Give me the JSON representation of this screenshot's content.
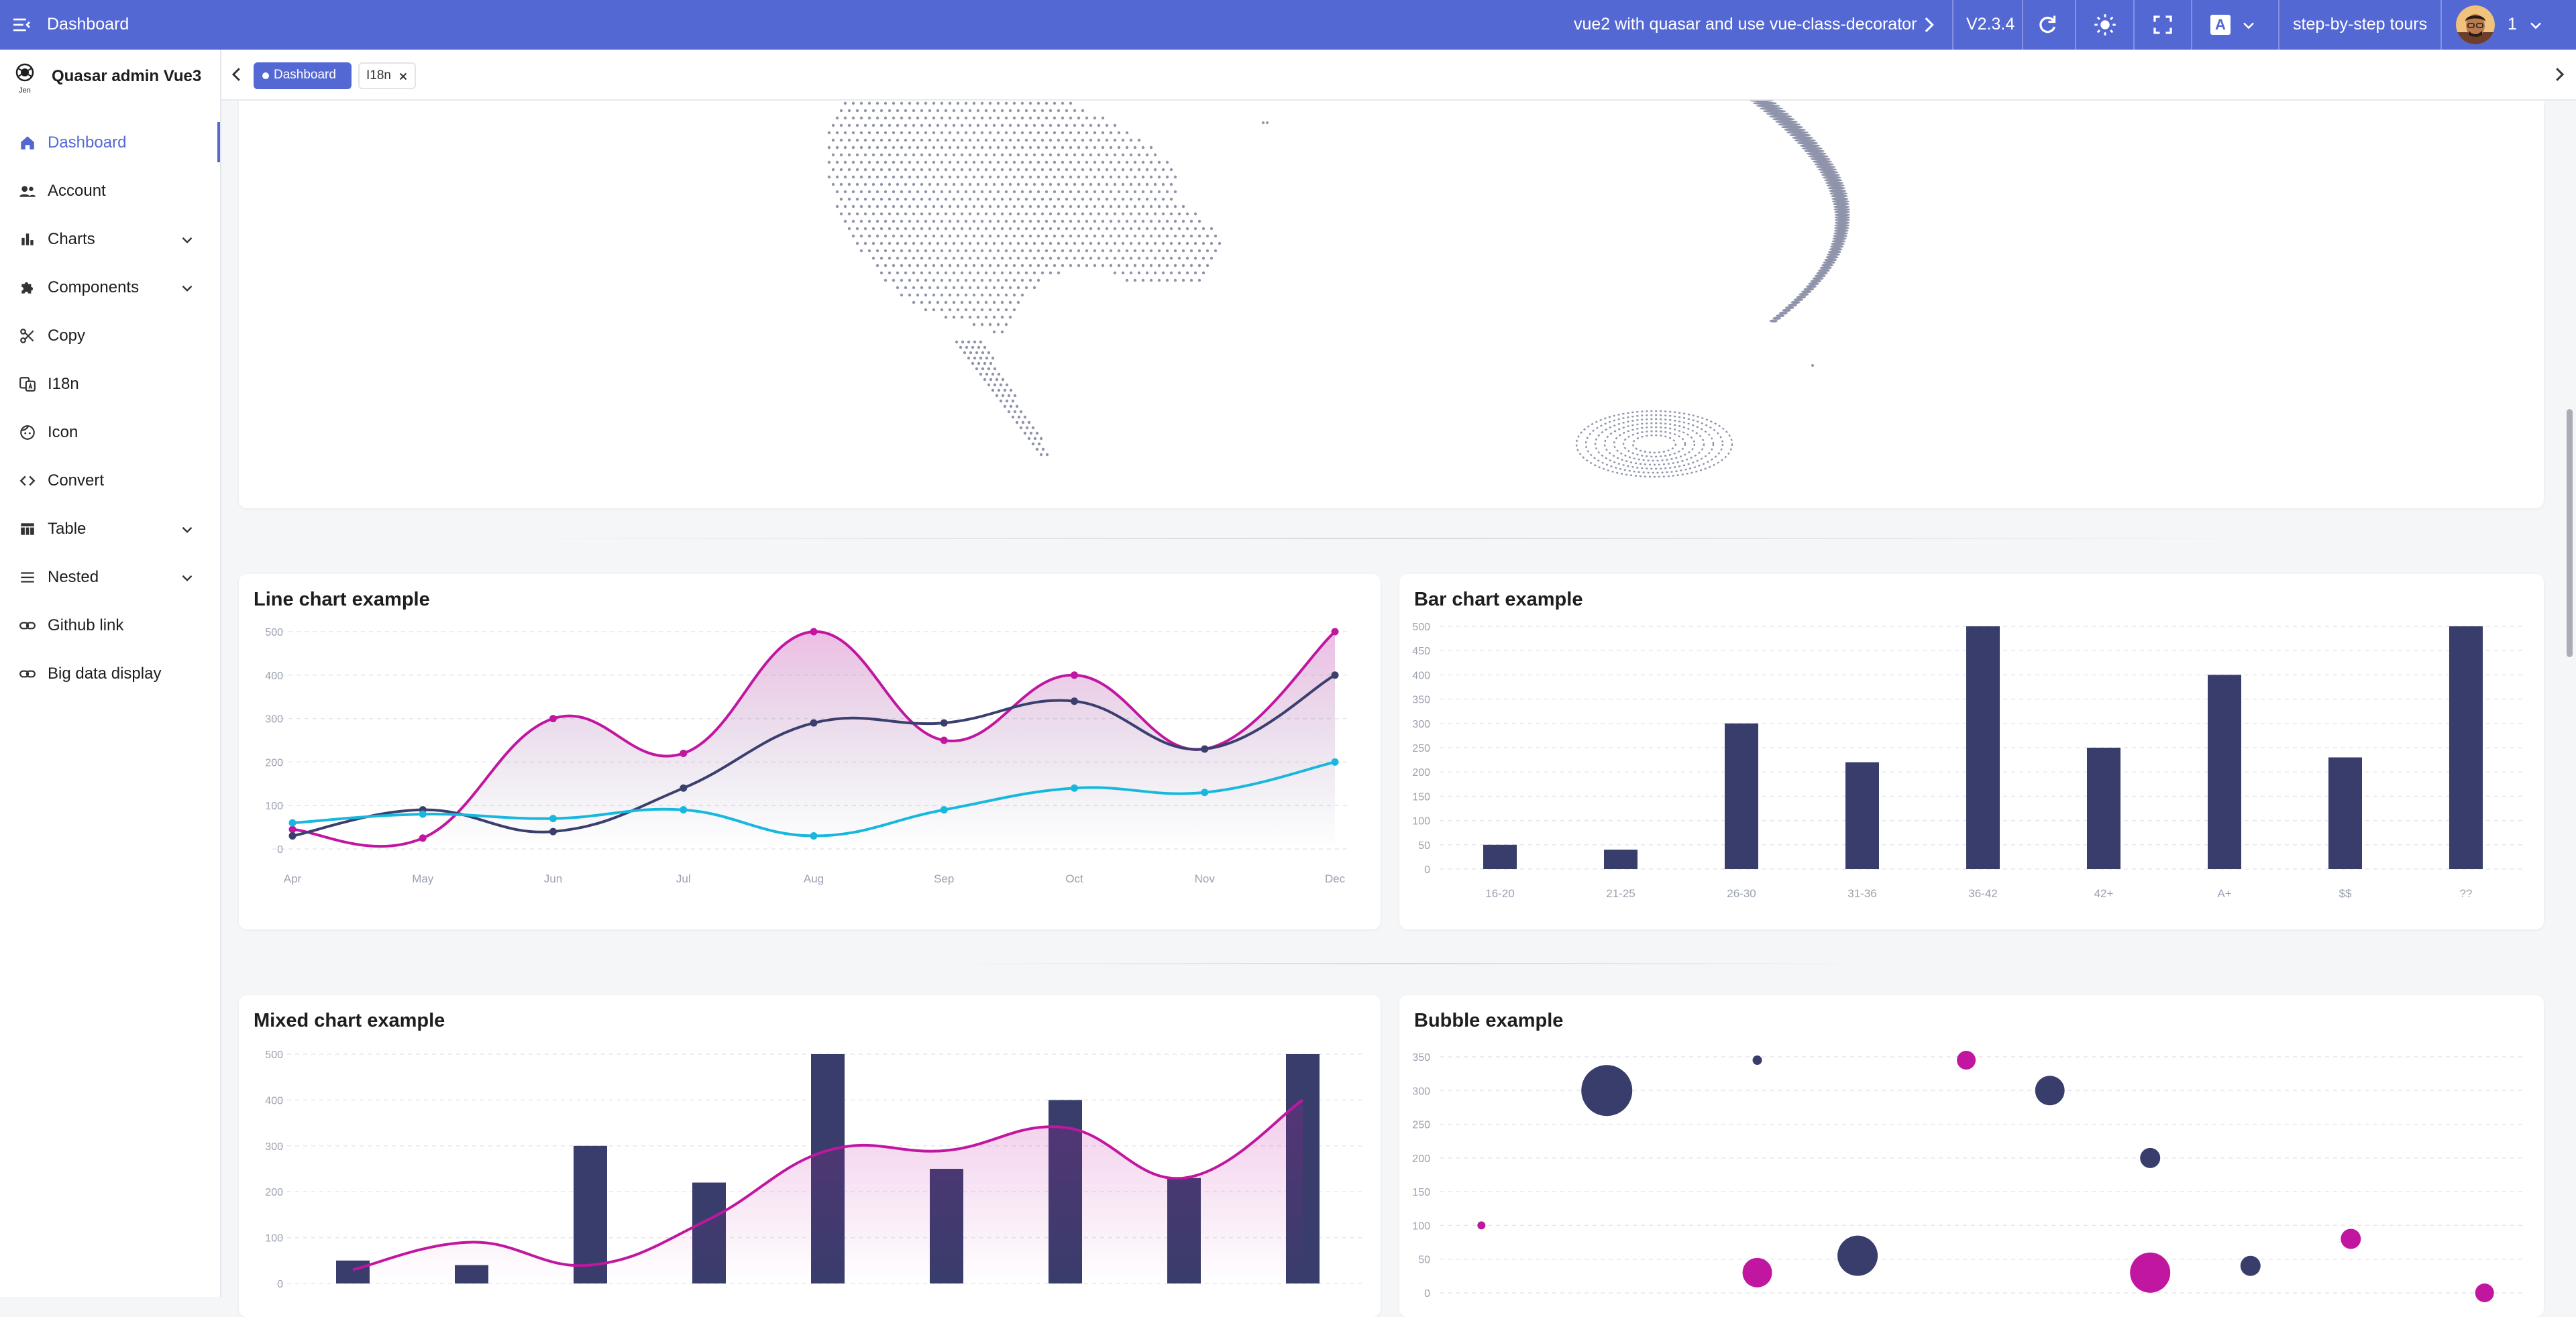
{
  "header": {
    "title": "Dashboard",
    "marquee": "vue2 with quasar and use vue-class-decorator",
    "version": "V2.3.4",
    "lang_badge": "A",
    "tours": "step-by-step tours",
    "user": "1",
    "color": "#5468d4",
    "icons": [
      "menu-fold-icon",
      "chevron-right-icon",
      "refresh-icon",
      "brightness-icon",
      "fullscreen-icon",
      "translate-icon",
      "chevron-down-icon"
    ]
  },
  "sidebar": {
    "brand": "Quasar admin Vue3",
    "logo_text": "Jen",
    "items": [
      {
        "label": "Dashboard",
        "icon": "home-icon",
        "active": true
      },
      {
        "label": "Account",
        "icon": "people-icon"
      },
      {
        "label": "Charts",
        "icon": "bar-chart-icon",
        "expandable": true
      },
      {
        "label": "Components",
        "icon": "puzzle-icon",
        "expandable": true
      },
      {
        "label": "Copy",
        "icon": "scissors-icon"
      },
      {
        "label": "I18n",
        "icon": "translate-icon"
      },
      {
        "label": "Icon",
        "icon": "face-icon"
      },
      {
        "label": "Convert",
        "icon": "code-icon"
      },
      {
        "label": "Table",
        "icon": "table-icon",
        "expandable": true
      },
      {
        "label": "Nested",
        "icon": "menu-icon",
        "expandable": true
      },
      {
        "label": "Github link",
        "icon": "link-icon"
      },
      {
        "label": "Big data display",
        "icon": "link-icon"
      }
    ]
  },
  "tabs": [
    {
      "label": "Dashboard",
      "active": true
    },
    {
      "label": "I18n",
      "closable": true
    }
  ],
  "cards": {
    "line": {
      "title": "Line chart example"
    },
    "bar": {
      "title": "Bar chart example"
    },
    "mixed": {
      "title": "Mixed chart example"
    },
    "bubble": {
      "title": "Bubble example"
    }
  },
  "chart_data": [
    {
      "type": "line",
      "title": "Line chart example",
      "categories": [
        "Apr",
        "May",
        "Jun",
        "Jul",
        "Aug",
        "Sep",
        "Oct",
        "Nov",
        "Dec"
      ],
      "ylim": [
        0,
        500
      ],
      "yticks": [
        0,
        100,
        200,
        300,
        400,
        500
      ],
      "grid": true,
      "series": [
        {
          "values": [
            45,
            25,
            300,
            220,
            500,
            250,
            400,
            230,
            500
          ],
          "color": "#c016a0",
          "area": true
        },
        {
          "values": [
            30,
            90,
            40,
            140,
            290,
            290,
            340,
            230,
            400
          ],
          "color": "#3a3f6e"
        },
        {
          "values": [
            60,
            80,
            70,
            90,
            30,
            90,
            140,
            130,
            200
          ],
          "color": "#18b8de"
        }
      ]
    },
    {
      "type": "bar",
      "title": "Bar chart example",
      "categories": [
        "16-20",
        "21-25",
        "26-30",
        "31-36",
        "36-42",
        "42+",
        "A+",
        "$$",
        "??"
      ],
      "values": [
        50,
        40,
        300,
        220,
        500,
        250,
        400,
        230,
        500
      ],
      "ylim": [
        0,
        500
      ],
      "yticks": [
        0,
        50,
        100,
        150,
        200,
        250,
        300,
        350,
        400,
        450,
        500
      ],
      "grid": true,
      "color": "#383d6b"
    },
    {
      "type": "bar",
      "title": "Mixed chart example",
      "values": [
        50,
        40,
        300,
        220,
        500,
        250,
        400,
        230,
        500
      ],
      "line_values": [
        30,
        90,
        40,
        140,
        290,
        290,
        340,
        230,
        400
      ],
      "ylim": [
        0,
        500
      ],
      "yticks": [
        0,
        100,
        200,
        300,
        400,
        500
      ],
      "grid": true,
      "bar_color": "#383d6b",
      "line_color": "#c016a0"
    },
    {
      "type": "scatter",
      "title": "Bubble example",
      "ylim": [
        0,
        350
      ],
      "yticks": [
        0,
        50,
        100,
        150,
        200,
        250,
        300,
        350
      ],
      "grid": true,
      "points": [
        {
          "x": 1,
          "y": 100,
          "r": 6,
          "color": "#c016a0"
        },
        {
          "x": 2.5,
          "y": 300,
          "r": 38,
          "color": "#383d6b"
        },
        {
          "x": 4.3,
          "y": 345,
          "r": 7,
          "color": "#383d6b"
        },
        {
          "x": 4.3,
          "y": 30,
          "r": 22,
          "color": "#c016a0"
        },
        {
          "x": 5.5,
          "y": 55,
          "r": 30,
          "color": "#383d6b"
        },
        {
          "x": 6.8,
          "y": 345,
          "r": 14,
          "color": "#c016a0"
        },
        {
          "x": 7.8,
          "y": 300,
          "r": 22,
          "color": "#383d6b"
        },
        {
          "x": 9.0,
          "y": 200,
          "r": 15,
          "color": "#383d6b"
        },
        {
          "x": 9.0,
          "y": 30,
          "r": 30,
          "color": "#c016a0"
        },
        {
          "x": 10.2,
          "y": 40,
          "r": 15,
          "color": "#383d6b"
        },
        {
          "x": 11.4,
          "y": 80,
          "r": 15,
          "color": "#c016a0"
        },
        {
          "x": 13.0,
          "y": 0,
          "r": 14,
          "color": "#c016a0"
        }
      ],
      "xlim": [
        0.5,
        13.5
      ]
    }
  ]
}
